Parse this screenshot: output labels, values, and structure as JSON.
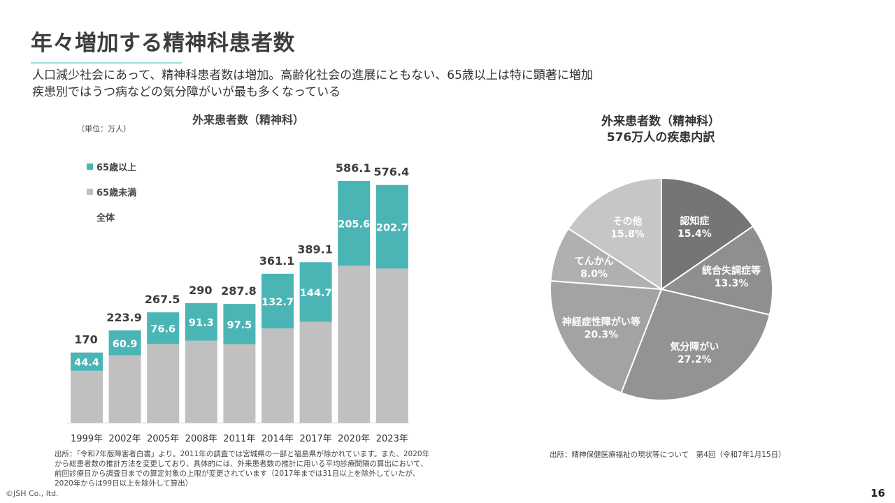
{
  "slide": {
    "title": "年々増加する精神科患者数",
    "subtitle_lines": [
      "人口減少社会にあって、精神科患者数は増加。高齢化社会の進展にともない、65歳以上は特に顕著に増加",
      "疾患別ではうつ病などの気分障がいが最も多くなっている"
    ],
    "page_number": "16",
    "copyright": "©JSH Co., ltd."
  },
  "colors": {
    "over65": "#4bb5b5",
    "under65": "#c0c0c0",
    "accent_rule": "#9fd9d7"
  },
  "bar_chart": {
    "title": "外来患者数（精神科）",
    "unit": "（単位：万人）",
    "legend": {
      "over65": "65歳以上",
      "under65": "65歳未満",
      "total": "全体"
    }
  },
  "pie_chart": {
    "title_line1": "外来患者数（精神科）",
    "title_line2": "576万人の疾患内訳"
  },
  "notes": {
    "left_lines": [
      "出所：「令和7年版障害者白書」より。2011年の調査では宮城県の一部と福島県が除かれています。また、2020年",
      "から総患者数の推計方法を変更しており、具体的には、外来患者数の推計に用いる平均診療間隔の算出において、",
      "前回診療日から調査日までの算定対象の上限が変更されています（2017年までは31日以上を除外していたが、",
      "2020年からは99日以上を除外して算出）"
    ],
    "right": "出所：精神保健医療福祉の現状等について　第4回（令和7年1月15日）"
  },
  "chart_data": [
    {
      "type": "bar",
      "stacked": true,
      "title": "外来患者数（精神科）",
      "unit": "万人",
      "categories": [
        "1999年",
        "2002年",
        "2005年",
        "2008年",
        "2011年",
        "2014年",
        "2017年",
        "2020年",
        "2023年"
      ],
      "series": [
        {
          "name": "65歳未満",
          "values": [
            125.6,
            163.0,
            190.9,
            198.7,
            190.3,
            228.4,
            244.4,
            380.5,
            373.7
          ]
        },
        {
          "name": "65歳以上",
          "values": [
            44.4,
            60.9,
            76.6,
            91.3,
            97.5,
            132.7,
            144.7,
            205.6,
            202.7
          ]
        }
      ],
      "totals": [
        "170",
        "223.9",
        "267.5",
        "290",
        "287.8",
        "361.1",
        "389.1",
        "586.1",
        "576.4"
      ],
      "over65_labels": [
        "44.4",
        "60.9",
        "76.6",
        "91.3",
        "97.5",
        "132.7",
        "144.7",
        "205.6",
        "202.7"
      ],
      "ylim": [
        0,
        600
      ],
      "legend_position": "top-left"
    },
    {
      "type": "pie",
      "title": "外来患者数（精神科） 576万人の疾患内訳",
      "slices": [
        {
          "label": "認知症",
          "value": 15.4,
          "pct": "15.4%",
          "color": "#757575"
        },
        {
          "label": "統合失調症等",
          "value": 13.3,
          "pct": "13.3%",
          "color": "#8f8f8f"
        },
        {
          "label": "気分障がい",
          "value": 27.2,
          "pct": "27.2%",
          "color": "#939393"
        },
        {
          "label": "神経症性障がい等",
          "value": 20.3,
          "pct": "20.3%",
          "color": "#a3a3a3"
        },
        {
          "label": "てんかん",
          "value": 8.0,
          "pct": "8.0%",
          "color": "#b0b0b0"
        },
        {
          "label": "その他",
          "value": 15.8,
          "pct": "15.8%",
          "color": "#c6c6c6"
        }
      ]
    }
  ]
}
